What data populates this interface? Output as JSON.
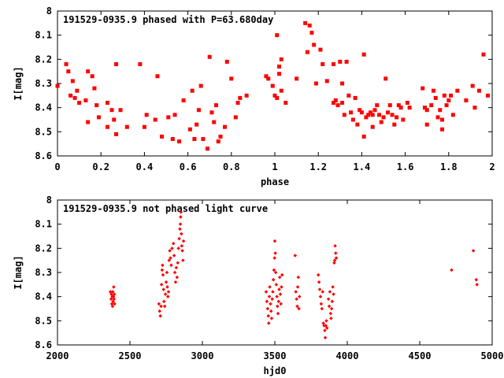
{
  "chart_data": [
    {
      "type": "scatter",
      "title": "191529-0935.9 phased with P=63.680day",
      "xlabel": "phase",
      "ylabel": "I[mag]",
      "xlim": [
        0,
        2
      ],
      "ylim": [
        8.6,
        8.0
      ],
      "y_inverted": true,
      "xticks": [
        "0",
        "0.2",
        "0.4",
        "0.6",
        "0.8",
        "1",
        "1.2",
        "1.4",
        "1.6",
        "1.8",
        "2"
      ],
      "yticks": [
        "8",
        "8.1",
        "8.2",
        "8.3",
        "8.4",
        "8.5",
        "8.6"
      ],
      "marker_color": "#ff0000",
      "points": [
        [
          0.0,
          8.31
        ],
        [
          0.04,
          8.22
        ],
        [
          0.05,
          8.25
        ],
        [
          0.06,
          8.35
        ],
        [
          0.07,
          8.29
        ],
        [
          0.08,
          8.36
        ],
        [
          0.09,
          8.33
        ],
        [
          0.1,
          8.38
        ],
        [
          0.13,
          8.37
        ],
        [
          0.14,
          8.25
        ],
        [
          0.14,
          8.46
        ],
        [
          0.16,
          8.27
        ],
        [
          0.17,
          8.32
        ],
        [
          0.18,
          8.39
        ],
        [
          0.19,
          8.44
        ],
        [
          0.23,
          8.38
        ],
        [
          0.23,
          8.48
        ],
        [
          0.25,
          8.41
        ],
        [
          0.26,
          8.45
        ],
        [
          0.27,
          8.22
        ],
        [
          0.27,
          8.51
        ],
        [
          0.29,
          8.41
        ],
        [
          0.32,
          8.48
        ],
        [
          0.38,
          8.22
        ],
        [
          0.4,
          8.48
        ],
        [
          0.41,
          8.43
        ],
        [
          0.45,
          8.45
        ],
        [
          0.46,
          8.27
        ],
        [
          0.48,
          8.52
        ],
        [
          0.51,
          8.44
        ],
        [
          0.53,
          8.53
        ],
        [
          0.54,
          8.43
        ],
        [
          0.56,
          8.54
        ],
        [
          0.58,
          8.37
        ],
        [
          0.61,
          8.49
        ],
        [
          0.62,
          8.33
        ],
        [
          0.63,
          8.53
        ],
        [
          0.64,
          8.47
        ],
        [
          0.65,
          8.41
        ],
        [
          0.66,
          8.31
        ],
        [
          0.67,
          8.53
        ],
        [
          0.69,
          8.57
        ],
        [
          0.7,
          8.19
        ],
        [
          0.71,
          8.42
        ],
        [
          0.72,
          8.46
        ],
        [
          0.73,
          8.39
        ],
        [
          0.74,
          8.54
        ],
        [
          0.75,
          8.52
        ],
        [
          0.77,
          8.48
        ],
        [
          0.78,
          8.21
        ],
        [
          0.8,
          8.28
        ],
        [
          0.82,
          8.44
        ],
        [
          0.83,
          8.38
        ],
        [
          0.84,
          8.36
        ],
        [
          0.87,
          8.35
        ],
        [
          0.96,
          8.27
        ],
        [
          0.97,
          8.28
        ],
        [
          0.99,
          8.31
        ],
        [
          1.0,
          8.35
        ],
        [
          1.01,
          8.36
        ],
        [
          1.01,
          8.1
        ],
        [
          1.02,
          8.23
        ],
        [
          1.02,
          8.26
        ],
        [
          1.03,
          8.2
        ],
        [
          1.03,
          8.33
        ],
        [
          1.05,
          8.38
        ],
        [
          1.1,
          8.28
        ],
        [
          1.14,
          8.05
        ],
        [
          1.15,
          8.17
        ],
        [
          1.16,
          8.06
        ],
        [
          1.17,
          8.09
        ],
        [
          1.18,
          8.14
        ],
        [
          1.19,
          8.3
        ],
        [
          1.21,
          8.16
        ],
        [
          1.22,
          8.22
        ],
        [
          1.24,
          8.29
        ],
        [
          1.27,
          8.22
        ],
        [
          1.27,
          8.38
        ],
        [
          1.28,
          8.37
        ],
        [
          1.29,
          8.39
        ],
        [
          1.3,
          8.21
        ],
        [
          1.31,
          8.3
        ],
        [
          1.31,
          8.38
        ],
        [
          1.32,
          8.43
        ],
        [
          1.33,
          8.21
        ],
        [
          1.34,
          8.35
        ],
        [
          1.35,
          8.42
        ],
        [
          1.36,
          8.45
        ],
        [
          1.37,
          8.36
        ],
        [
          1.38,
          8.47
        ],
        [
          1.39,
          8.41
        ],
        [
          1.4,
          8.42
        ],
        [
          1.41,
          8.52
        ],
        [
          1.41,
          8.18
        ],
        [
          1.42,
          8.44
        ],
        [
          1.43,
          8.43
        ],
        [
          1.44,
          8.42
        ],
        [
          1.45,
          8.43
        ],
        [
          1.45,
          8.48
        ],
        [
          1.46,
          8.41
        ],
        [
          1.47,
          8.39
        ],
        [
          1.48,
          8.43
        ],
        [
          1.49,
          8.46
        ],
        [
          1.5,
          8.44
        ],
        [
          1.51,
          8.28
        ],
        [
          1.52,
          8.42
        ],
        [
          1.53,
          8.39
        ],
        [
          1.54,
          8.43
        ],
        [
          1.55,
          8.47
        ],
        [
          1.56,
          8.44
        ],
        [
          1.57,
          8.39
        ],
        [
          1.58,
          8.4
        ],
        [
          1.59,
          8.45
        ],
        [
          1.61,
          8.38
        ],
        [
          1.62,
          8.4
        ],
        [
          1.68,
          8.32
        ],
        [
          1.69,
          8.4
        ],
        [
          1.7,
          8.41
        ],
        [
          1.7,
          8.47
        ],
        [
          1.72,
          8.39
        ],
        [
          1.73,
          8.33
        ],
        [
          1.74,
          8.36
        ],
        [
          1.75,
          8.44
        ],
        [
          1.76,
          8.41
        ],
        [
          1.77,
          8.45
        ],
        [
          1.77,
          8.49
        ],
        [
          1.78,
          8.35
        ],
        [
          1.79,
          8.39
        ],
        [
          1.8,
          8.37
        ],
        [
          1.81,
          8.35
        ],
        [
          1.82,
          8.43
        ],
        [
          1.84,
          8.33
        ],
        [
          1.88,
          8.37
        ],
        [
          1.91,
          8.31
        ],
        [
          1.92,
          8.4
        ],
        [
          1.94,
          8.33
        ],
        [
          1.96,
          8.18
        ],
        [
          1.98,
          8.35
        ]
      ]
    },
    {
      "type": "scatter",
      "title": "191529-0935.9 not phased light curve",
      "xlabel": "hjd0",
      "ylabel": "I[mag]",
      "xlim": [
        2000,
        5000
      ],
      "ylim": [
        8.6,
        8.0
      ],
      "y_inverted": true,
      "xticks": [
        "2000",
        "2500",
        "3000",
        "3500",
        "4000",
        "4500",
        "5000"
      ],
      "yticks": [
        "8",
        "8.1",
        "8.2",
        "8.3",
        "8.4",
        "8.5",
        "8.6"
      ],
      "marker_color": "#ff0000",
      "points": [
        [
          2365,
          8.38
        ],
        [
          2370,
          8.41
        ],
        [
          2372,
          8.39
        ],
        [
          2375,
          8.43
        ],
        [
          2378,
          8.4
        ],
        [
          2380,
          8.44
        ],
        [
          2382,
          8.38
        ],
        [
          2384,
          8.42
        ],
        [
          2386,
          8.4
        ],
        [
          2388,
          8.36
        ],
        [
          2390,
          8.41
        ],
        [
          2392,
          8.39
        ],
        [
          2394,
          8.43
        ],
        [
          2700,
          8.43
        ],
        [
          2705,
          8.46
        ],
        [
          2710,
          8.48
        ],
        [
          2715,
          8.44
        ],
        [
          2718,
          8.35
        ],
        [
          2722,
          8.29
        ],
        [
          2725,
          8.27
        ],
        [
          2728,
          8.31
        ],
        [
          2732,
          8.37
        ],
        [
          2735,
          8.42
        ],
        [
          2740,
          8.44
        ],
        [
          2745,
          8.39
        ],
        [
          2750,
          8.34
        ],
        [
          2755,
          8.3
        ],
        [
          2758,
          8.36
        ],
        [
          2762,
          8.4
        ],
        [
          2766,
          8.38
        ],
        [
          2770,
          8.25
        ],
        [
          2775,
          8.21
        ],
        [
          2780,
          8.24
        ],
        [
          2785,
          8.27
        ],
        [
          2790,
          8.2
        ],
        [
          2800,
          8.18
        ],
        [
          2805,
          8.23
        ],
        [
          2810,
          8.3
        ],
        [
          2815,
          8.34
        ],
        [
          2820,
          8.28
        ],
        [
          2825,
          8.32
        ],
        [
          2830,
          8.26
        ],
        [
          2835,
          8.2
        ],
        [
          2840,
          8.16
        ],
        [
          2845,
          8.12
        ],
        [
          2848,
          8.1
        ],
        [
          2850,
          8.07
        ],
        [
          2852,
          8.05
        ],
        [
          2855,
          8.14
        ],
        [
          2858,
          8.19
        ],
        [
          2862,
          8.21
        ],
        [
          2866,
          8.25
        ],
        [
          2870,
          8.17
        ],
        [
          3440,
          8.38
        ],
        [
          3445,
          8.42
        ],
        [
          3450,
          8.45
        ],
        [
          3455,
          8.48
        ],
        [
          3458,
          8.51
        ],
        [
          3462,
          8.4
        ],
        [
          3465,
          8.36
        ],
        [
          3470,
          8.43
        ],
        [
          3474,
          8.46
        ],
        [
          3478,
          8.49
        ],
        [
          3482,
          8.41
        ],
        [
          3486,
          8.38
        ],
        [
          3490,
          8.33
        ],
        [
          3494,
          8.29
        ],
        [
          3498,
          8.24
        ],
        [
          3500,
          8.17
        ],
        [
          3503,
          8.22
        ],
        [
          3506,
          8.3
        ],
        [
          3510,
          8.35
        ],
        [
          3514,
          8.4
        ],
        [
          3518,
          8.44
        ],
        [
          3522,
          8.47
        ],
        [
          3526,
          8.42
        ],
        [
          3530,
          8.37
        ],
        [
          3534,
          8.32
        ],
        [
          3538,
          8.39
        ],
        [
          3542,
          8.43
        ],
        [
          3546,
          8.36
        ],
        [
          3550,
          8.31
        ],
        [
          3640,
          8.23
        ],
        [
          3645,
          8.38
        ],
        [
          3650,
          8.41
        ],
        [
          3655,
          8.44
        ],
        [
          3658,
          8.36
        ],
        [
          3662,
          8.32
        ],
        [
          3666,
          8.45
        ],
        [
          3670,
          8.4
        ],
        [
          3800,
          8.31
        ],
        [
          3805,
          8.34
        ],
        [
          3810,
          8.37
        ],
        [
          3815,
          8.4
        ],
        [
          3820,
          8.43
        ],
        [
          3825,
          8.45
        ],
        [
          3830,
          8.38
        ],
        [
          3835,
          8.51
        ],
        [
          3840,
          8.52
        ],
        [
          3845,
          8.54
        ],
        [
          3848,
          8.57
        ],
        [
          3852,
          8.52
        ],
        [
          3856,
          8.5
        ],
        [
          3860,
          8.53
        ],
        [
          3870,
          8.41
        ],
        [
          3875,
          8.44
        ],
        [
          3880,
          8.38
        ],
        [
          3885,
          8.47
        ],
        [
          3888,
          8.49
        ],
        [
          3892,
          8.45
        ],
        [
          3896,
          8.42
        ],
        [
          3900,
          8.36
        ],
        [
          3905,
          8.39
        ],
        [
          3910,
          8.26
        ],
        [
          3913,
          8.25
        ],
        [
          3916,
          8.19
        ],
        [
          3920,
          8.22
        ],
        [
          3924,
          8.24
        ],
        [
          4720,
          8.29
        ],
        [
          4870,
          8.21
        ],
        [
          4890,
          8.33
        ],
        [
          4895,
          8.35
        ]
      ]
    }
  ]
}
